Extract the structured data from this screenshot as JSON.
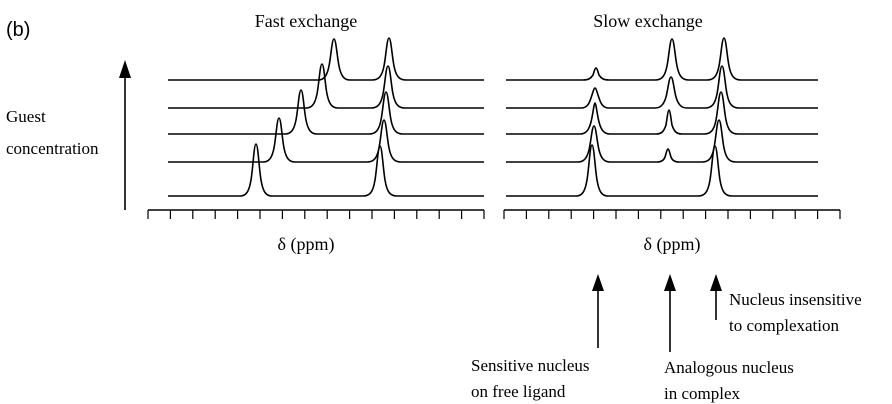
{
  "panel_label": "(b)",
  "fast": {
    "title": "Fast exchange",
    "axis_label": "δ (ppm)"
  },
  "slow": {
    "title": "Slow exchange",
    "axis_label": "δ (ppm)"
  },
  "y_axis": {
    "label_line1": "Guest",
    "label_line2": "concentration"
  },
  "annotations": {
    "insensitive": {
      "line1": "Nucleus insensitive",
      "line2": "to complexation"
    },
    "sensitive": {
      "line1": "Sensitive nucleus",
      "line2": "on free ligand"
    },
    "analogous": {
      "line1": "Analogous nucleus",
      "line2": "in complex"
    }
  }
}
